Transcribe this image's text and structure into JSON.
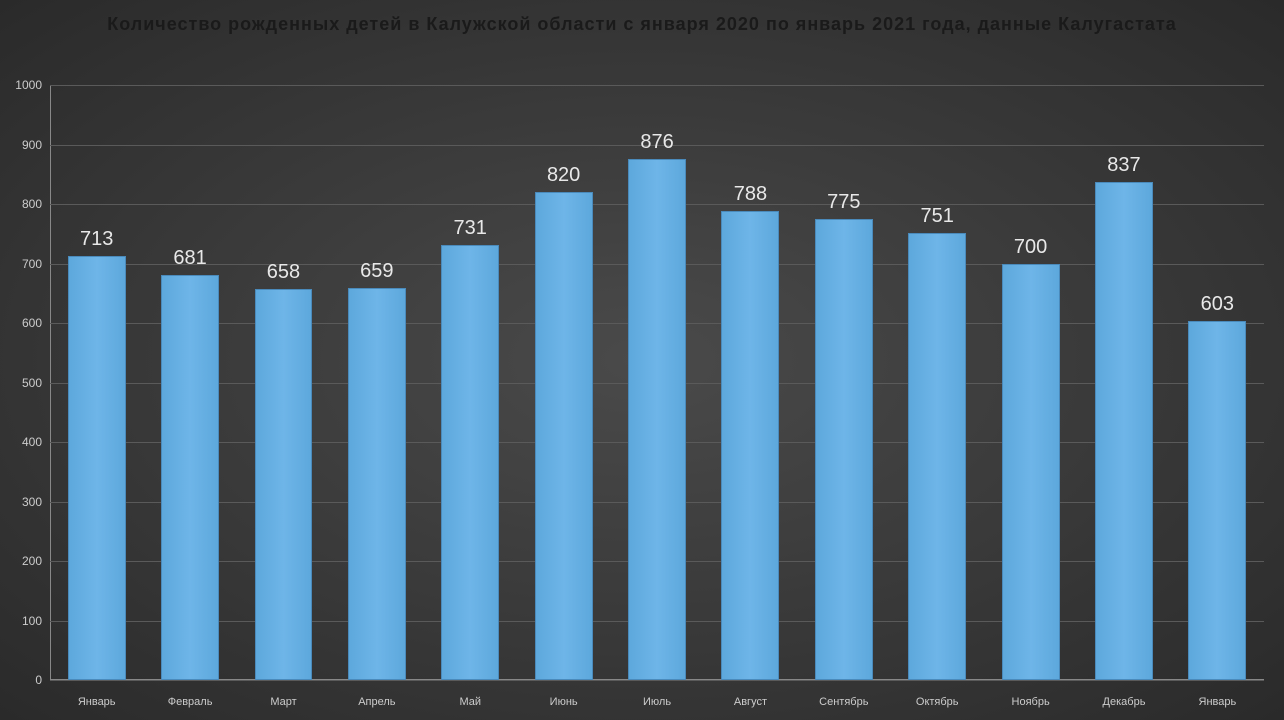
{
  "chart": {
    "type": "bar",
    "title": "Количество рожденных детей в Калужской области с января 2020 по январь 2021 года, данные Калугастата",
    "categories": [
      "Январь",
      "Февраль",
      "Март",
      "Апрель",
      "Май",
      "Июнь",
      "Июль",
      "Август",
      "Сентябрь",
      "Октябрь",
      "Ноябрь",
      "Декабрь",
      "Январь"
    ],
    "values": [
      713,
      681,
      658,
      659,
      731,
      820,
      876,
      788,
      775,
      751,
      700,
      837,
      603
    ],
    "ylim": [
      0,
      1000
    ],
    "ytick_step": 100,
    "bar_color": "#6eb5e8",
    "bar_border_color": "#4a8abb",
    "grid_color": "#5a5a5a",
    "background_inner": "#4a4a4a",
    "background_outer": "#2a2a2a",
    "title_color": "#1a1a1a",
    "title_fontsize": 18,
    "tick_label_color": "#cccccc",
    "tick_fontsize": 12,
    "value_label_color": "#e8e8e8",
    "value_label_fontsize": 20,
    "bar_width_ratio": 0.62
  }
}
